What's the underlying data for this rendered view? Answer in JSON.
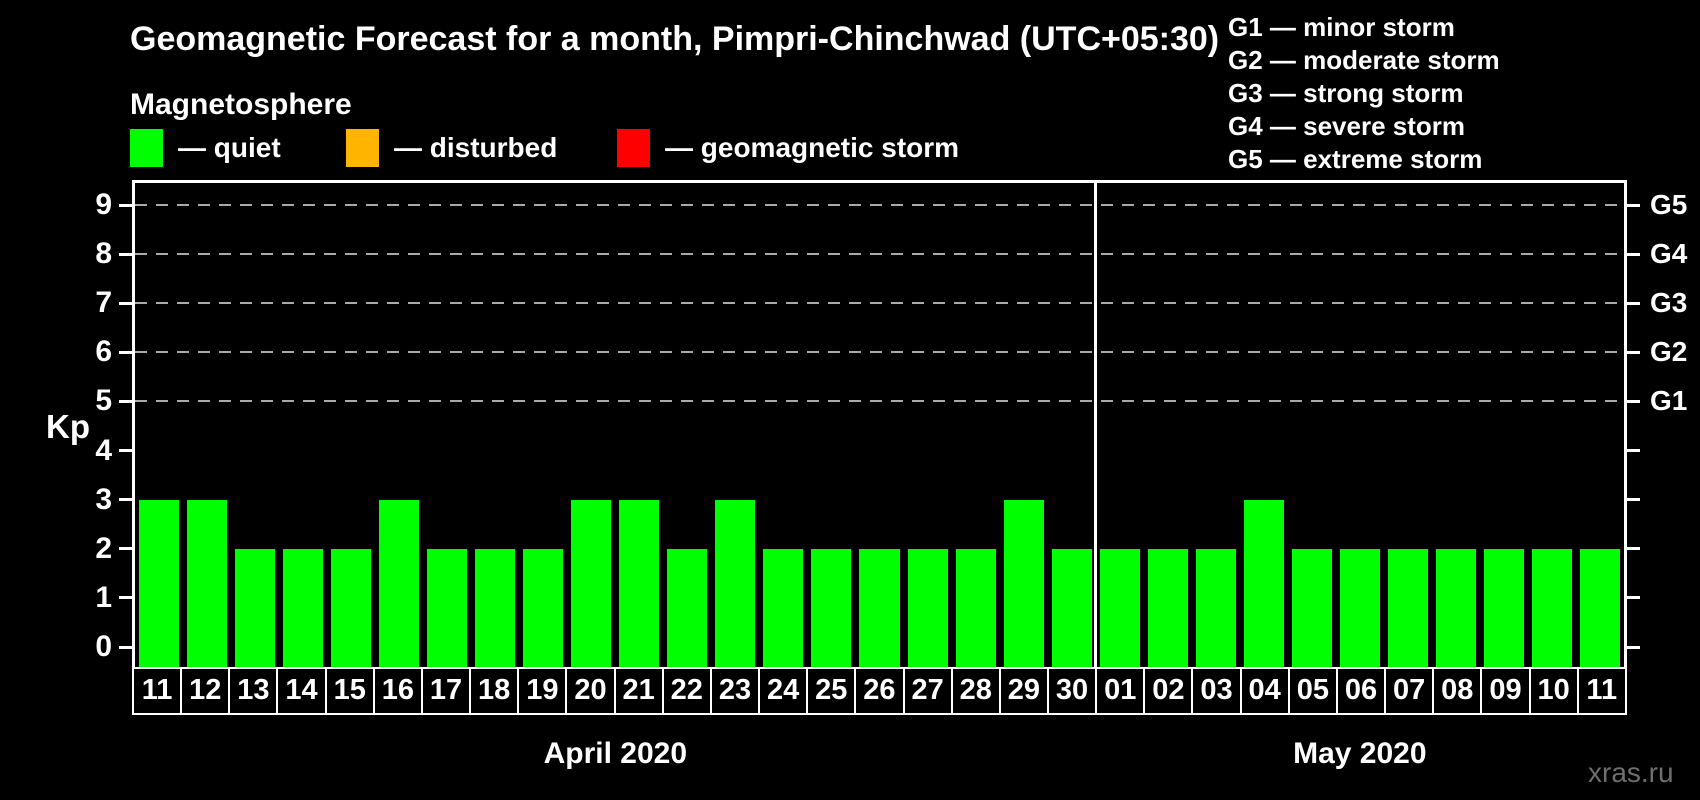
{
  "title": "Geomagnetic Forecast for a month, Pimpri-Chinchwad (UTC+05:30)",
  "subtitle": "Magnetosphere",
  "legend": {
    "items": [
      {
        "name": "quiet",
        "label": "— quiet",
        "color": "#00ff00"
      },
      {
        "name": "disturbed",
        "label": "— disturbed",
        "color": "#ffb400"
      },
      {
        "name": "storm",
        "label": "— geomagnetic storm",
        "color": "#ff0000"
      }
    ]
  },
  "g_legend": {
    "lines": [
      "G1 — minor storm",
      "G2 — moderate storm",
      "G3 — strong storm",
      "G4 — severe storm",
      "G5 — extreme storm"
    ]
  },
  "watermark": "xras.ru",
  "chart_data": {
    "type": "bar",
    "title": "Geomagnetic Forecast for a month, Pimpri-Chinchwad (UTC+05:30)",
    "ylabel": "Kp",
    "ylim": [
      0,
      9
    ],
    "yticks": [
      0,
      1,
      2,
      3,
      4,
      5,
      6,
      7,
      8,
      9
    ],
    "gridlines_at": [
      5,
      6,
      7,
      8,
      9
    ],
    "grid": true,
    "legend_position": "top",
    "right_axis": [
      {
        "kp": 5,
        "label": "G1"
      },
      {
        "kp": 6,
        "label": "G2"
      },
      {
        "kp": 7,
        "label": "G3"
      },
      {
        "kp": 8,
        "label": "G4"
      },
      {
        "kp": 9,
        "label": "G5"
      }
    ],
    "color_thresholds": {
      "quiet_max": 3,
      "disturbed_max": 4
    },
    "groups": [
      {
        "month": "April 2020",
        "days": [
          "11",
          "12",
          "13",
          "14",
          "15",
          "16",
          "17",
          "18",
          "19",
          "20",
          "21",
          "22",
          "23",
          "24",
          "25",
          "26",
          "27",
          "28",
          "29",
          "30"
        ],
        "values": [
          3,
          3,
          2,
          2,
          2,
          3,
          2,
          2,
          2,
          3,
          3,
          2,
          3,
          2,
          2,
          2,
          2,
          2,
          3,
          2
        ]
      },
      {
        "month": "May 2020",
        "days": [
          "01",
          "02",
          "03",
          "04",
          "05",
          "06",
          "07",
          "08",
          "09",
          "10",
          "11"
        ],
        "values": [
          2,
          2,
          2,
          3,
          2,
          2,
          2,
          2,
          2,
          2,
          2
        ]
      }
    ]
  }
}
